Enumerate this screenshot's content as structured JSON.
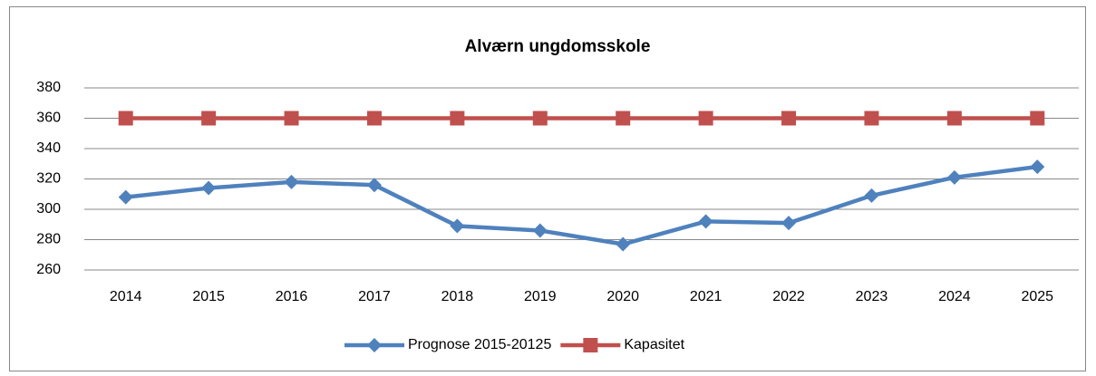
{
  "chart_data": {
    "type": "line",
    "title": "Alværn ungdomsskole",
    "categories": [
      "2014",
      "2015",
      "2016",
      "2017",
      "2018",
      "2019",
      "2020",
      "2021",
      "2022",
      "2023",
      "2024",
      "2025"
    ],
    "series": [
      {
        "name": "Prognose 2015-20125",
        "color": "#4f81bd",
        "marker": "diamond",
        "values": [
          308,
          314,
          318,
          316,
          289,
          286,
          277,
          292,
          291,
          309,
          321,
          328
        ]
      },
      {
        "name": "Kapasitet",
        "color": "#c0504d",
        "marker": "square",
        "values": [
          360,
          360,
          360,
          360,
          360,
          360,
          360,
          360,
          360,
          360,
          360,
          360
        ]
      }
    ],
    "ylim": [
      260,
      380
    ],
    "yticks": [
      260,
      280,
      300,
      320,
      340,
      360,
      380
    ],
    "grid": true,
    "legend": "bottom"
  }
}
